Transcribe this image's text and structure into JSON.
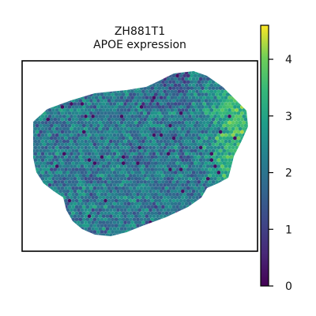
{
  "chart_data": {
    "type": "heatmap",
    "title": "ZH881T1",
    "subtitle": "APOE expression",
    "xlabel": "",
    "ylabel": "",
    "colorbar": {
      "ticks": [
        0,
        1,
        2,
        3,
        4
      ],
      "range": [
        0,
        4.6
      ],
      "colormap": "viridis",
      "placement": "right"
    },
    "grid": false,
    "description_of_marks": "hexagonal spatial spots colored by expression level",
    "colors": {
      "low": "#440154",
      "mid": "#21918c",
      "high": "#fde725",
      "frame": "#000000"
    }
  }
}
